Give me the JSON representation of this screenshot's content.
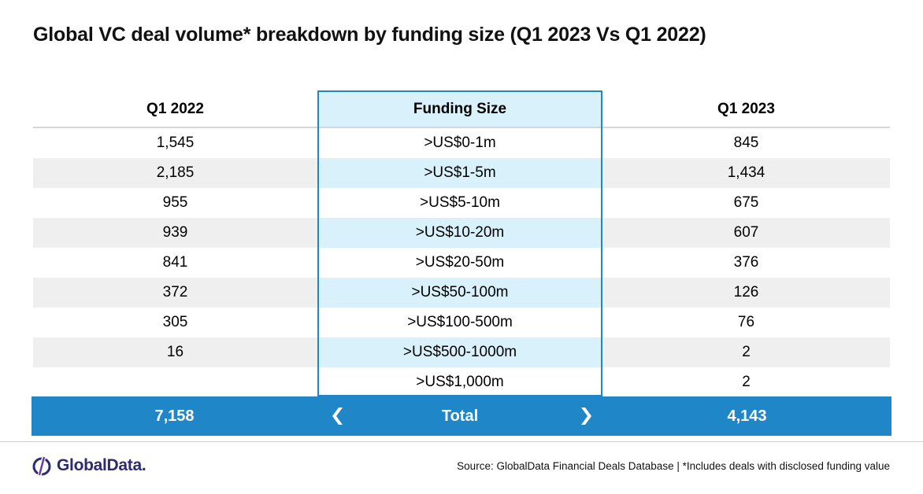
{
  "title": "Global VC deal volume* breakdown by funding size (Q1 2023 Vs Q1 2022)",
  "chart_data": {
    "type": "table",
    "title": "Global VC deal volume* breakdown by funding size (Q1 2023 Vs Q1 2022)",
    "columns": [
      "Q1 2022",
      "Funding Size",
      "Q1 2023"
    ],
    "rows": [
      {
        "q1_2022": "1,545",
        "size": ">US$0-1m",
        "q1_2023": "845"
      },
      {
        "q1_2022": "2,185",
        "size": ">US$1-5m",
        "q1_2023": "1,434"
      },
      {
        "q1_2022": "955",
        "size": ">US$5-10m",
        "q1_2023": "675"
      },
      {
        "q1_2022": "939",
        "size": ">US$10-20m",
        "q1_2023": "607"
      },
      {
        "q1_2022": "841",
        "size": ">US$20-50m",
        "q1_2023": "376"
      },
      {
        "q1_2022": "372",
        "size": ">US$50-100m",
        "q1_2023": "126"
      },
      {
        "q1_2022": "305",
        "size": ">US$100-500m",
        "q1_2023": "76"
      },
      {
        "q1_2022": "16",
        "size": ">US$500-1000m",
        "q1_2023": "2"
      },
      {
        "q1_2022": "",
        "size": ">US$1,000m",
        "q1_2023": "2"
      }
    ],
    "total": {
      "q1_2022": "7,158",
      "label": "Total",
      "q1_2023": "4,143"
    }
  },
  "colors": {
    "accent": "#1f86c8",
    "highlight": "#d9f1fb",
    "row_shade": "#efefef",
    "logo": "#2b2b6e"
  },
  "footer": {
    "logo_text": "GlobalData.",
    "source": "Source:  GlobalData Financial Deals Database | *Includes deals with disclosed funding value"
  }
}
